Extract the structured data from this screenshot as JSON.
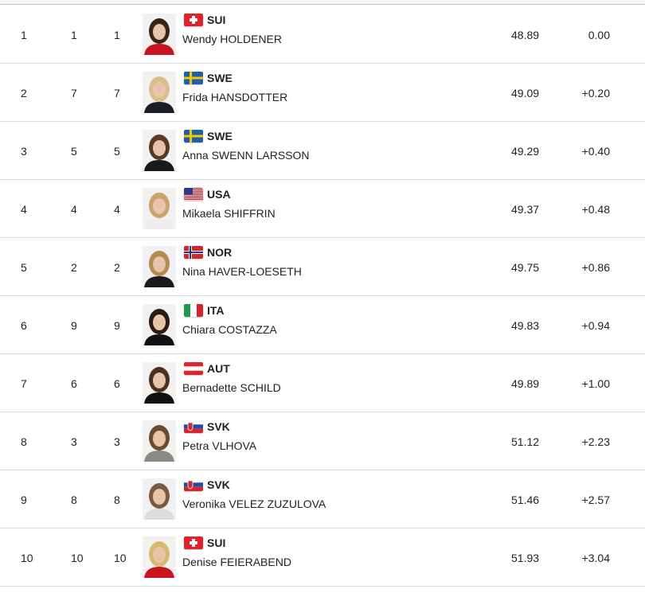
{
  "results": [
    {
      "rank": "1",
      "bib": "1",
      "start": "1",
      "country": "SUI",
      "name": "Wendy HOLDENER",
      "time": "48.89",
      "diff": "0.00",
      "hair": "#3a2418",
      "jacket": "#c8141e"
    },
    {
      "rank": "2",
      "bib": "7",
      "start": "7",
      "country": "SWE",
      "name": "Frida HANSDOTTER",
      "time": "49.09",
      "diff": "+0.20",
      "hair": "#d9c08a",
      "jacket": "#1a1d2a"
    },
    {
      "rank": "3",
      "bib": "5",
      "start": "5",
      "country": "SWE",
      "name": "Anna SWENN LARSSON",
      "time": "49.29",
      "diff": "+0.40",
      "hair": "#5a3a24",
      "jacket": "#1a1a1a"
    },
    {
      "rank": "4",
      "bib": "4",
      "start": "4",
      "country": "USA",
      "name": "Mikaela SHIFFRIN",
      "time": "49.37",
      "diff": "+0.48",
      "hair": "#c9a46a",
      "jacket": "#eee"
    },
    {
      "rank": "5",
      "bib": "2",
      "start": "2",
      "country": "NOR",
      "name": "Nina HAVER-LOESETH",
      "time": "49.75",
      "diff": "+0.86",
      "hair": "#b58a52",
      "jacket": "#1a1a1a"
    },
    {
      "rank": "6",
      "bib": "9",
      "start": "9",
      "country": "ITA",
      "name": "Chiara COSTAZZA",
      "time": "49.83",
      "diff": "+0.94",
      "hair": "#2a1a12",
      "jacket": "#111"
    },
    {
      "rank": "7",
      "bib": "6",
      "start": "6",
      "country": "AUT",
      "name": "Bernadette SCHILD",
      "time": "49.89",
      "diff": "+1.00",
      "hair": "#4a3020",
      "jacket": "#111"
    },
    {
      "rank": "8",
      "bib": "3",
      "start": "3",
      "country": "SVK",
      "name": "Petra VLHOVA",
      "time": "51.12",
      "diff": "+2.23",
      "hair": "#6a4a30",
      "jacket": "#8a8a80"
    },
    {
      "rank": "9",
      "bib": "8",
      "start": "8",
      "country": "SVK",
      "name": "Veronika VELEZ ZUZULOVA",
      "time": "51.46",
      "diff": "+2.57",
      "hair": "#7a5a40",
      "jacket": "#ddd"
    },
    {
      "rank": "10",
      "bib": "10",
      "start": "10",
      "country": "SUI",
      "name": "Denise FEIERABEND",
      "time": "51.93",
      "diff": "+3.04",
      "hair": "#d8b870",
      "jacket": "#c8141e"
    }
  ]
}
